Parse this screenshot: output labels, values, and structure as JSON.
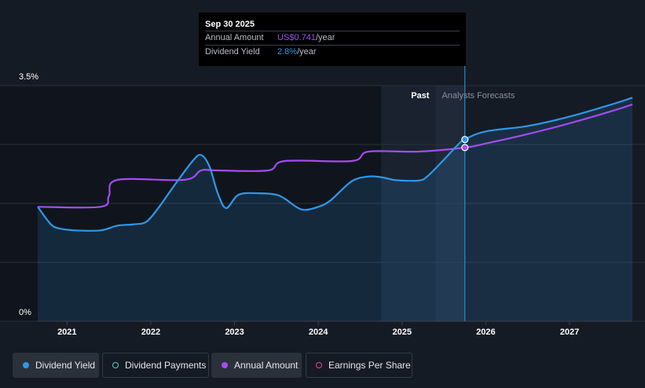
{
  "tooltip": {
    "date": "Sep 30 2025",
    "annual_label": "Annual Amount",
    "annual_value": "US$0.741",
    "annual_unit": "/year",
    "yield_label": "Dividend Yield",
    "yield_value": "2.8%",
    "yield_unit": "/year"
  },
  "regions": {
    "past": "Past",
    "forecast": "Analysts Forecasts"
  },
  "legend": [
    {
      "label": "Dividend Yield",
      "color": "#2f98e8",
      "filled": true,
      "active": true
    },
    {
      "label": "Dividend Payments",
      "color": "#4fd1c0",
      "filled": false,
      "active": false
    },
    {
      "label": "Annual Amount",
      "color": "#a44cf2",
      "filled": true,
      "active": true
    },
    {
      "label": "Earnings Per Share",
      "color": "#e0458a",
      "filled": false,
      "active": false
    }
  ],
  "chart_data": {
    "type": "line",
    "xlim": [
      2020.65,
      2027.75
    ],
    "ylim": [
      0,
      3.5
    ],
    "y_unit": "%",
    "y_tick_labels": [
      "0%",
      "3.5%"
    ],
    "x_ticks": [
      2021,
      2022,
      2023,
      2024,
      2025,
      2026,
      2027
    ],
    "x_tick_labels": [
      "2021",
      "2022",
      "2023",
      "2024",
      "2025",
      "2026",
      "2027"
    ],
    "past_band": [
      2024.75,
      2025.75
    ],
    "forecast_start": 2025.4,
    "today": 2025.75,
    "grid": true,
    "colors": {
      "yield": "#2f98e8",
      "amount": "#a44cf2"
    },
    "series": [
      {
        "name": "Dividend Yield",
        "x": [
          2020.65,
          2020.8,
          2020.9,
          2021.1,
          2021.4,
          2021.6,
          2021.8,
          2021.95,
          2022.1,
          2022.3,
          2022.5,
          2022.6,
          2022.7,
          2022.8,
          2022.9,
          2023.05,
          2023.3,
          2023.5,
          2023.6,
          2023.8,
          2024.0,
          2024.15,
          2024.4,
          2024.6,
          2024.75,
          2024.9,
          2025.0,
          2025.2,
          2025.3,
          2025.5,
          2025.65,
          2025.75,
          2026.0,
          2026.5,
          2027.0,
          2027.5,
          2027.75
        ],
        "y": [
          1.7,
          1.45,
          1.38,
          1.35,
          1.35,
          1.42,
          1.44,
          1.48,
          1.7,
          2.05,
          2.38,
          2.47,
          2.3,
          1.9,
          1.68,
          1.88,
          1.9,
          1.88,
          1.82,
          1.66,
          1.7,
          1.8,
          2.08,
          2.15,
          2.14,
          2.1,
          2.09,
          2.09,
          2.15,
          2.4,
          2.6,
          2.7,
          2.82,
          2.9,
          3.04,
          3.22,
          3.32
        ]
      },
      {
        "name": "Annual Amount",
        "x": [
          2020.65,
          2021.4,
          2021.5,
          2021.6,
          2022.4,
          2022.6,
          2022.8,
          2023.4,
          2023.6,
          2024.4,
          2024.6,
          2025.2,
          2025.75,
          2026.0,
          2026.5,
          2027.0,
          2027.5,
          2027.75
        ],
        "y": [
          1.7,
          1.7,
          1.86,
          2.1,
          2.1,
          2.24,
          2.24,
          2.24,
          2.38,
          2.38,
          2.52,
          2.52,
          2.58,
          2.64,
          2.78,
          2.94,
          3.12,
          3.22
        ]
      }
    ]
  }
}
